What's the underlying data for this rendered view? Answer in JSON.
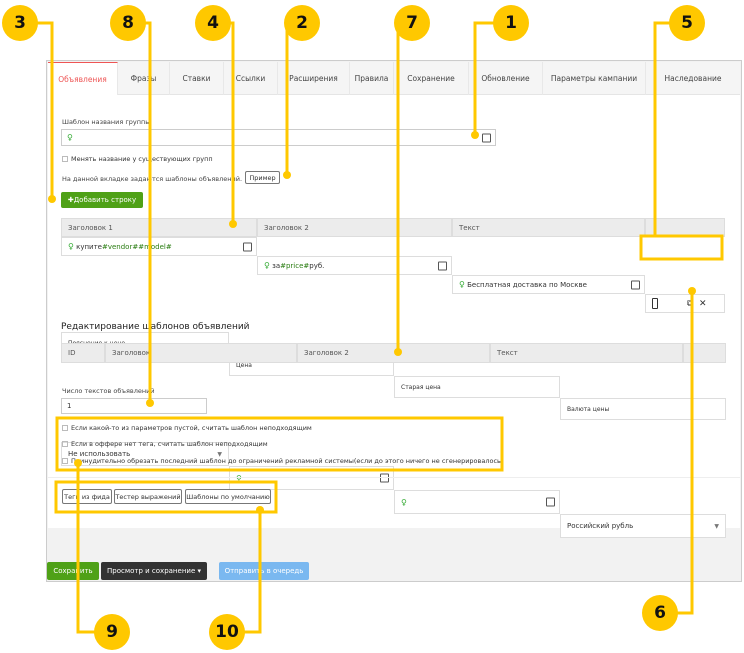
{
  "tabs": [
    "Объявления",
    "Фразы",
    "Ставки",
    "Ссылки",
    "Расширения",
    "Правила",
    "Сохранение",
    "Обновление",
    "Параметры кампании",
    "Наследование"
  ],
  "group_template": {
    "label": "Шаблон названия группы",
    "value": ""
  },
  "rename_checkbox": "Менять название у существующих групп",
  "info_text": "На данной вкладке задаются шаблоны объявлений.",
  "example_button": "Пример",
  "add_row_button": "Добавить строку",
  "ad_table": {
    "headers": [
      "Заголовок 1",
      "Заголовок 2",
      "Текст"
    ],
    "row": {
      "title1_plain": "купите ",
      "title1_tag": "#vendor##model#",
      "title2_plain": "за ",
      "title2_tag": "#price#",
      "title2_suffix": " руб.",
      "text": "Бесплатная доставка по Москве"
    },
    "price_headers": [
      "Пояснение к цене",
      "Цена",
      "Старая цена",
      "Валюта цены"
    ],
    "price_row": {
      "explanation": "Не использовать",
      "price": "",
      "old_price": "",
      "currency": "Российский рубль"
    }
  },
  "edit_section": {
    "title": "Редактирование шаблонов объявлений",
    "headers": [
      "ID",
      "Заголовок",
      "Заголовок 2",
      "Текст"
    ]
  },
  "count": {
    "label": "Число текстов объявлений",
    "value": "1"
  },
  "options": [
    "Если какой-то из параметров пустой, считать шаблон неподходящим",
    "Если в оффере нет тега, считать шаблон неподходящим",
    "Принудительно обрезать последний шаблон до ограничений рекламной системы(если до этого ничего не сгенерировалось)"
  ],
  "tools": [
    "Теги из фида",
    "Тестер выражений",
    "Шаблоны по умолчанию"
  ],
  "footer": {
    "save": "Сохранить",
    "preview": "Просмотр и сохранение",
    "queue": "Отправить в очередь"
  },
  "callouts": [
    "1",
    "2",
    "3",
    "4",
    "5",
    "6",
    "7",
    "8",
    "9",
    "10"
  ],
  "colors": {
    "accent": "#ffc800",
    "green": "#4fa117",
    "active_tab": "#e55555",
    "queue": "#7ab8f0"
  }
}
